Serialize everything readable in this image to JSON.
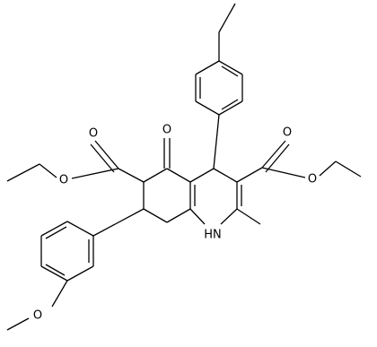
{
  "nodes": [
    {
      "label": "O"
    },
    {
      "label": "O"
    },
    {
      "label": "O"
    },
    {
      "label": "O"
    },
    {
      "label": "O"
    },
    {
      "label": "O"
    },
    {
      "label": "HN"
    }
  ]
}
